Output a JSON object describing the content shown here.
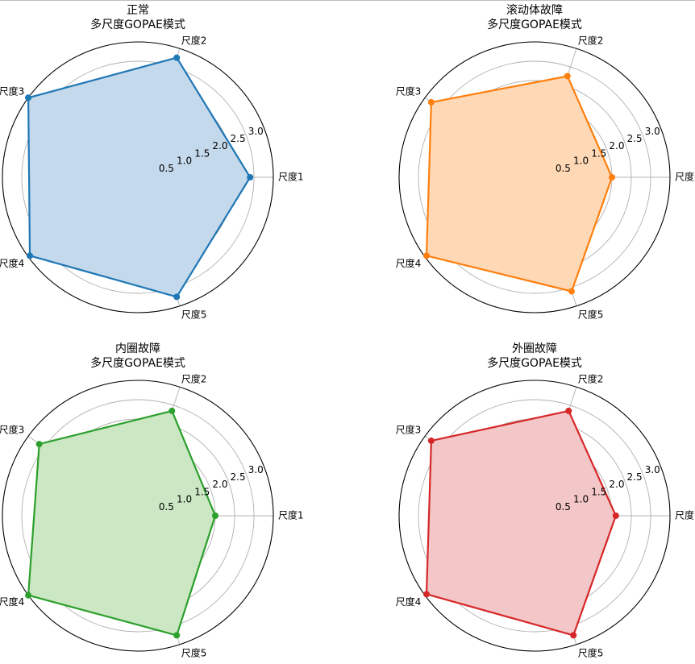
{
  "chart_data": [
    {
      "type": "radar",
      "title": "正常",
      "subtitle": "多尺度GOPAE模式",
      "categories": [
        "尺度1",
        "尺度2",
        "尺度3",
        "尺度4",
        "尺度5"
      ],
      "values": [
        2.9,
        3.25,
        3.5,
        3.45,
        3.25
      ],
      "rlim": [
        0,
        3.5
      ],
      "rticks": [
        "0.5",
        "1.0",
        "1.5",
        "2.0",
        "2.5",
        "3.0"
      ],
      "grid": true,
      "color": "#1f77b4",
      "fill": "#c5d9ec"
    },
    {
      "type": "radar",
      "title": "滚动体故障",
      "subtitle": "多尺度GOPAE模式",
      "categories": [
        "尺度1",
        "尺度2",
        "尺度3",
        "尺度4",
        "尺度5"
      ],
      "values": [
        2.0,
        2.75,
        3.3,
        3.45,
        3.1
      ],
      "rlim": [
        0,
        3.5
      ],
      "rticks": [
        "0.5",
        "1.0",
        "1.5",
        "2.0",
        "2.5",
        "3.0"
      ],
      "grid": true,
      "color": "#ff7f0e",
      "fill": "#ffd8b6"
    },
    {
      "type": "radar",
      "title": "内圈故障",
      "subtitle": "多尺度GOPAE模式",
      "categories": [
        "尺度1",
        "尺度2",
        "尺度3",
        "尺度4",
        "尺度5"
      ],
      "values": [
        2.0,
        2.85,
        3.15,
        3.5,
        3.25
      ],
      "rlim": [
        0,
        3.5
      ],
      "rticks": [
        "0.5",
        "1.0",
        "1.5",
        "2.0",
        "2.5",
        "3.0"
      ],
      "grid": true,
      "color": "#2ca02c",
      "fill": "#cce7c3"
    },
    {
      "type": "radar",
      "title": "外圈故障",
      "subtitle": "多尺度GOPAE模式",
      "categories": [
        "尺度1",
        "尺度2",
        "尺度3",
        "尺度4",
        "尺度5"
      ],
      "values": [
        2.1,
        2.85,
        3.3,
        3.45,
        3.25
      ],
      "rlim": [
        0,
        3.5
      ],
      "rticks": [
        "0.5",
        "1.0",
        "1.5",
        "2.0",
        "2.5",
        "3.0"
      ],
      "grid": true,
      "color": "#d62728",
      "fill": "#f3c6c7"
    }
  ]
}
